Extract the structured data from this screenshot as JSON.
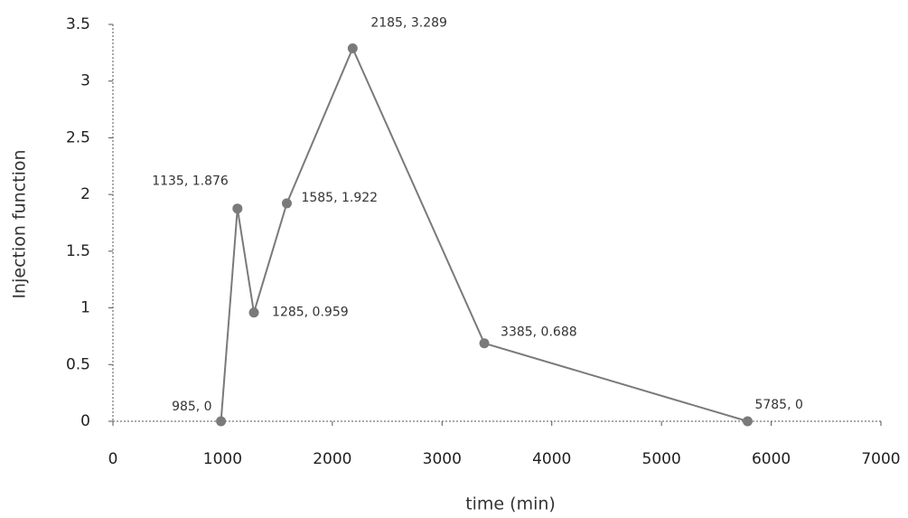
{
  "chart_data": {
    "type": "line",
    "x_label": "time (min)",
    "y_label": "Injection function",
    "x": [
      985,
      1135,
      1285,
      1585,
      2185,
      3385,
      5785
    ],
    "series": [
      {
        "name": "Injection function",
        "color": "#7a7a7a",
        "values": [
          0,
          1.876,
          0.959,
          1.922,
          3.289,
          0.688,
          0
        ],
        "value_labels": [
          "985, 0",
          "1135, 1.876",
          "1285, 0.959",
          "1585, 1.922",
          "2185, 3.289",
          "3385, 0.688",
          "5785, 0"
        ]
      }
    ],
    "xlim": [
      0,
      7000
    ],
    "xticks": [
      0,
      1000,
      2000,
      3000,
      4000,
      5000,
      6000,
      7000
    ],
    "ylim": [
      0,
      3.5
    ],
    "yticks": [
      0,
      0.5,
      1,
      1.5,
      2,
      2.5,
      3,
      3.5
    ],
    "grid": false
  }
}
